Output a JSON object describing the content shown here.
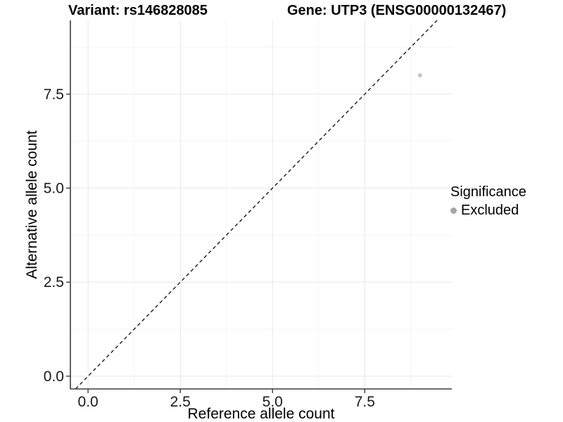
{
  "header": {
    "variant_title": "Variant: rs146828085",
    "gene_title": "Gene: UTP3 (ENSG00000132467)"
  },
  "chart_data": {
    "type": "scatter",
    "title": "Variant: rs146828085   Gene: UTP3 (ENSG00000132467)",
    "xlabel": "Reference allele count",
    "ylabel": "Alternative allele count",
    "xlim": [
      -0.48,
      9.86
    ],
    "ylim": [
      -0.34,
      9.46
    ],
    "x_ticks": {
      "values": [
        0,
        2.5,
        5,
        7.5
      ],
      "labels": [
        "0.0",
        "2.5",
        "5.0",
        "7.5"
      ]
    },
    "y_ticks": {
      "values": [
        0,
        2.5,
        5,
        7.5
      ],
      "labels": [
        "0.0",
        "2.5",
        "5.0",
        "7.5"
      ]
    },
    "x_minor": [
      1.25,
      3.75,
      6.25,
      8.75
    ],
    "y_minor": [
      1.25,
      3.75,
      6.25,
      8.75
    ],
    "grid": "major+minor",
    "legend_position": "right",
    "identity_line": {
      "slope": 1,
      "intercept": 0,
      "style": "dashed"
    },
    "series": [
      {
        "name": "Excluded",
        "color": "#c6c6c6",
        "points": [
          {
            "x": 9,
            "y": 8
          }
        ]
      }
    ],
    "legend": {
      "title": "Significance",
      "entries": [
        {
          "label": "Excluded",
          "color": "#a6a6a6"
        }
      ]
    }
  },
  "colors": {
    "background": "#ffffff",
    "grid_major": "#e7e7e7",
    "grid_minor": "#f4f4f4",
    "axis_line": "#3c3c3c",
    "tick_text": "#1a1a1a",
    "title_text": "#000000",
    "identity_line": "#1a1a1a"
  }
}
